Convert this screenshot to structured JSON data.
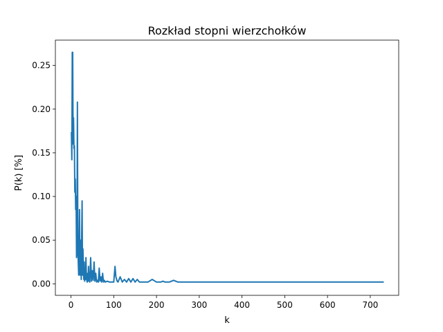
{
  "chart_data": {
    "type": "line",
    "title": "Rozkład stopni wierzchołków",
    "xlabel": "k",
    "ylabel": "P(k) [%]",
    "xlim": [
      -36.5,
      766.5
    ],
    "ylim": [
      -0.0132,
      0.279
    ],
    "xticks": [
      0,
      100,
      200,
      300,
      400,
      500,
      600,
      700
    ],
    "yticks": [
      0.0,
      0.05,
      0.1,
      0.15,
      0.2,
      0.25
    ],
    "xtick_labels": [
      "0",
      "100",
      "200",
      "300",
      "400",
      "500",
      "600",
      "700"
    ],
    "ytick_labels": [
      "0.00",
      "0.05",
      "0.10",
      "0.15",
      "0.20",
      "0.25"
    ],
    "grid": false,
    "legend": false,
    "series": [
      {
        "color": "#1f77b4",
        "x": [
          1,
          2,
          3,
          4,
          5,
          6,
          7,
          8,
          9,
          10,
          11,
          12,
          13,
          14,
          15,
          16,
          17,
          18,
          19,
          20,
          21,
          22,
          23,
          24,
          25,
          26,
          27,
          28,
          29,
          30,
          31,
          32,
          33,
          34,
          35,
          36,
          37,
          38,
          39,
          40,
          41,
          42,
          44,
          46,
          48,
          50,
          52,
          54,
          56,
          58,
          60,
          62,
          64,
          66,
          68,
          70,
          72,
          74,
          76,
          78,
          80,
          85,
          90,
          95,
          100,
          103,
          105,
          108,
          110,
          115,
          120,
          125,
          130,
          135,
          140,
          145,
          150,
          155,
          160,
          170,
          180,
          190,
          200,
          210,
          215,
          220,
          230,
          240,
          250,
          260,
          270,
          300,
          400,
          500,
          600,
          700,
          730
        ],
        "y": [
          0.173,
          0.142,
          0.265,
          0.265,
          0.16,
          0.19,
          0.155,
          0.158,
          0.105,
          0.12,
          0.085,
          0.1,
          0.03,
          0.035,
          0.208,
          0.05,
          0.025,
          0.01,
          0.045,
          0.085,
          0.01,
          0.03,
          0.05,
          0.005,
          0.055,
          0.095,
          0.01,
          0.04,
          0.02,
          0.005,
          0.025,
          0.003,
          0.01,
          0.005,
          0.03,
          0.008,
          0.004,
          0.002,
          0.012,
          0.003,
          0.02,
          0.005,
          0.002,
          0.03,
          0.003,
          0.015,
          0.004,
          0.025,
          0.003,
          0.012,
          0.002,
          0.004,
          0.002,
          0.018,
          0.003,
          0.008,
          0.002,
          0.012,
          0.002,
          0.004,
          0.002,
          0.003,
          0.002,
          0.002,
          0.002,
          0.02,
          0.008,
          0.003,
          0.002,
          0.008,
          0.002,
          0.005,
          0.002,
          0.006,
          0.002,
          0.006,
          0.002,
          0.005,
          0.002,
          0.002,
          0.002,
          0.005,
          0.002,
          0.002,
          0.003,
          0.002,
          0.002,
          0.004,
          0.002,
          0.002,
          0.002,
          0.002,
          0.002,
          0.002,
          0.002,
          0.002,
          0.002
        ]
      }
    ]
  }
}
